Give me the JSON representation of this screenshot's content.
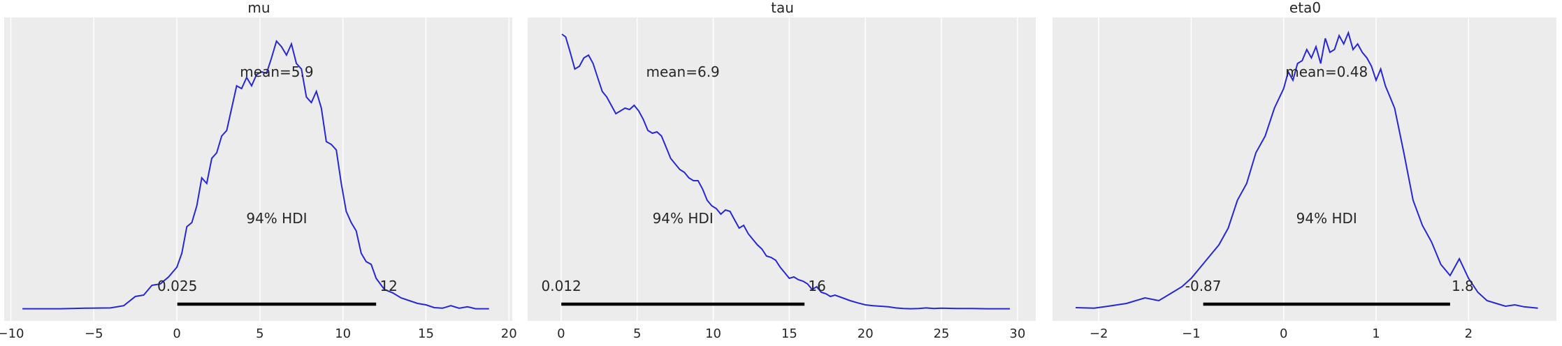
{
  "chart_data": [
    {
      "type": "line",
      "title": "mu",
      "xlabel": "",
      "ylabel": "",
      "xlim": [
        -10.4,
        20.2
      ],
      "xticks": [
        -10,
        -5,
        0,
        5,
        10,
        15,
        20
      ],
      "xtick_labels": [
        "−10",
        "−5",
        "0",
        "5",
        "10",
        "15",
        "20"
      ],
      "grid": true,
      "mean_label": "mean=5.9",
      "hdi_label": "94% HDI",
      "hdi": [
        0.025,
        12
      ],
      "hdi_low_label": "0.025",
      "hdi_high_label": "12",
      "line_color": "#2626d6",
      "hdi_color": "#000000",
      "background": "#ececec",
      "series": [
        {
          "x": [
            -9.3,
            -7,
            -5.5,
            -4,
            -3.2,
            -2.5,
            -2,
            -1.5,
            -1,
            -0.5,
            0,
            0.3,
            0.6,
            0.9,
            1.2,
            1.5,
            1.8,
            2.1,
            2.4,
            2.7,
            3,
            3.3,
            3.6,
            3.9,
            4.2,
            4.5,
            4.8,
            5.1,
            5.4,
            5.7,
            6,
            6.3,
            6.6,
            6.9,
            7.2,
            7.5,
            7.8,
            8.1,
            8.4,
            8.7,
            9,
            9.3,
            9.6,
            9.9,
            10.2,
            10.5,
            10.8,
            11.1,
            11.4,
            11.7,
            12,
            12.5,
            13,
            13.5,
            14,
            14.5,
            15,
            15.5,
            16,
            16.5,
            17,
            17.5,
            18,
            18.8
          ],
          "y": [
            0.001,
            0.001,
            0.003,
            0.004,
            0.012,
            0.045,
            0.05,
            0.085,
            0.09,
            0.115,
            0.15,
            0.2,
            0.295,
            0.31,
            0.37,
            0.47,
            0.45,
            0.54,
            0.56,
            0.62,
            0.64,
            0.72,
            0.8,
            0.79,
            0.83,
            0.8,
            0.84,
            0.85,
            0.845,
            0.9,
            0.96,
            0.94,
            0.91,
            0.95,
            0.88,
            0.86,
            0.76,
            0.74,
            0.78,
            0.72,
            0.6,
            0.59,
            0.57,
            0.45,
            0.35,
            0.31,
            0.28,
            0.2,
            0.17,
            0.16,
            0.11,
            0.07,
            0.058,
            0.04,
            0.03,
            0.02,
            0.015,
            0.005,
            0.003,
            0.012,
            0.003,
            0.008,
            0.001,
            0.001
          ]
        }
      ]
    },
    {
      "type": "line",
      "title": "tau",
      "xlabel": "",
      "ylabel": "",
      "xlim": [
        -2.2,
        31.2
      ],
      "xticks": [
        0,
        5,
        10,
        15,
        20,
        25,
        30
      ],
      "xtick_labels": [
        "0",
        "5",
        "10",
        "15",
        "20",
        "25",
        "30"
      ],
      "grid": true,
      "mean_label": "mean=6.9",
      "hdi_label": "94% HDI",
      "hdi": [
        0.012,
        16
      ],
      "hdi_low_label": "0.012",
      "hdi_high_label": "16",
      "line_color": "#2626d6",
      "hdi_color": "#000000",
      "background": "#ececec",
      "series": [
        {
          "x": [
            0.05,
            0.3,
            0.6,
            0.9,
            1.2,
            1.5,
            1.8,
            2.1,
            2.4,
            2.7,
            3,
            3.3,
            3.6,
            3.9,
            4.2,
            4.5,
            4.8,
            5.1,
            5.4,
            5.7,
            6,
            6.3,
            6.6,
            6.9,
            7.2,
            7.5,
            7.8,
            8.1,
            8.4,
            8.7,
            9,
            9.3,
            9.6,
            9.9,
            10.2,
            10.5,
            10.8,
            11.1,
            11.4,
            11.7,
            12,
            12.3,
            12.6,
            12.9,
            13.2,
            13.5,
            13.8,
            14.1,
            14.4,
            14.7,
            15,
            15.3,
            15.6,
            15.9,
            16.2,
            16.5,
            16.8,
            17.1,
            17.4,
            17.7,
            18,
            18.5,
            19,
            19.5,
            20,
            20.5,
            21,
            21.5,
            22,
            22.5,
            23,
            23.5,
            24,
            24.5,
            25,
            26,
            27,
            28,
            29.5
          ],
          "y": [
            0.985,
            0.975,
            0.92,
            0.86,
            0.87,
            0.9,
            0.91,
            0.88,
            0.83,
            0.78,
            0.76,
            0.73,
            0.7,
            0.71,
            0.72,
            0.715,
            0.73,
            0.71,
            0.68,
            0.64,
            0.63,
            0.635,
            0.62,
            0.58,
            0.54,
            0.52,
            0.5,
            0.49,
            0.47,
            0.46,
            0.46,
            0.43,
            0.39,
            0.37,
            0.36,
            0.34,
            0.355,
            0.35,
            0.32,
            0.29,
            0.3,
            0.27,
            0.25,
            0.23,
            0.215,
            0.19,
            0.185,
            0.175,
            0.15,
            0.13,
            0.11,
            0.115,
            0.105,
            0.1,
            0.09,
            0.07,
            0.08,
            0.06,
            0.055,
            0.045,
            0.05,
            0.04,
            0.03,
            0.022,
            0.015,
            0.012,
            0.01,
            0.008,
            0.004,
            0.002,
            0.001,
            0.002,
            0.004,
            0.002,
            0.003,
            0.002,
            0.002,
            0.001,
            0.001
          ]
        }
      ]
    },
    {
      "type": "line",
      "title": "eta0",
      "xlabel": "",
      "ylabel": "",
      "xlim": [
        -2.5,
        2.95
      ],
      "xticks": [
        -2,
        -1,
        0,
        1,
        2
      ],
      "xtick_labels": [
        "−2",
        "−1",
        "0",
        "1",
        "2"
      ],
      "grid": true,
      "mean_label": "mean=0.48",
      "hdi_label": "94% HDI",
      "hdi": [
        -0.87,
        1.8
      ],
      "hdi_low_label": "-0.87",
      "hdi_high_label": "1.8",
      "line_color": "#2626d6",
      "hdi_color": "#000000",
      "background": "#ececec",
      "series": [
        {
          "x": [
            -2.25,
            -2.05,
            -1.9,
            -1.7,
            -1.5,
            -1.35,
            -1.2,
            -1.1,
            -1,
            -0.9,
            -0.8,
            -0.7,
            -0.6,
            -0.5,
            -0.4,
            -0.3,
            -0.2,
            -0.1,
            0,
            0.05,
            0.1,
            0.15,
            0.2,
            0.25,
            0.3,
            0.35,
            0.4,
            0.45,
            0.5,
            0.55,
            0.6,
            0.65,
            0.7,
            0.75,
            0.8,
            0.85,
            0.9,
            0.95,
            1,
            1.05,
            1.1,
            1.15,
            1.2,
            1.3,
            1.4,
            1.5,
            1.6,
            1.7,
            1.8,
            1.9,
            2,
            2.1,
            2.2,
            2.3,
            2.4,
            2.5,
            2.6,
            2.75
          ],
          "y": [
            0.005,
            0.003,
            0.01,
            0.02,
            0.04,
            0.03,
            0.06,
            0.08,
            0.11,
            0.15,
            0.19,
            0.23,
            0.29,
            0.39,
            0.45,
            0.56,
            0.62,
            0.72,
            0.79,
            0.85,
            0.82,
            0.88,
            0.89,
            0.93,
            0.9,
            0.94,
            0.88,
            0.97,
            0.92,
            0.93,
            0.98,
            0.95,
            0.99,
            0.93,
            0.95,
            0.92,
            0.9,
            0.87,
            0.82,
            0.86,
            0.8,
            0.76,
            0.72,
            0.56,
            0.39,
            0.3,
            0.24,
            0.16,
            0.12,
            0.18,
            0.11,
            0.06,
            0.03,
            0.02,
            0.01,
            0.015,
            0.008,
            0.003
          ]
        }
      ]
    }
  ]
}
